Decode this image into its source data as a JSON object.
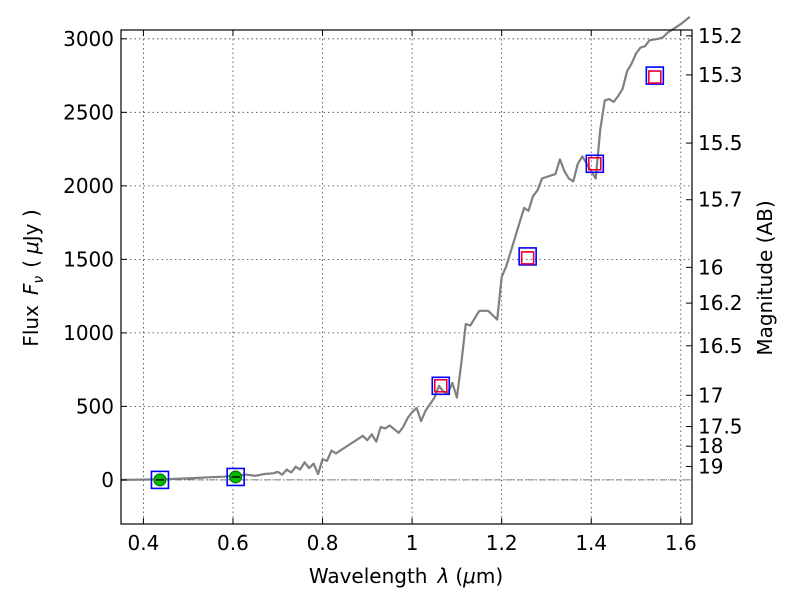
{
  "chart_data": {
    "type": "line",
    "xlabel": "Wavelength",
    "xlabel_symbol": "λ",
    "xlabel_unit_open": "(",
    "xlabel_unit_mu": "μ",
    "xlabel_unit_rest": "m)",
    "ylabel": "Flux",
    "ylabel_symbol": "F",
    "ylabel_subscript": "ν",
    "ylabel_unit_open": "(",
    "ylabel_unit_mu": "μ",
    "ylabel_unit_rest": "Jy )",
    "y2label": "Magnitude (AB)",
    "xlim": [
      0.35,
      1.625
    ],
    "ylim": [
      -300,
      3060
    ],
    "grid": true,
    "x_ticks": [
      {
        "value": 0.4,
        "label": "0.4"
      },
      {
        "value": 0.6,
        "label": "0.6"
      },
      {
        "value": 0.8,
        "label": "0.8"
      },
      {
        "value": 1.0,
        "label": "1"
      },
      {
        "value": 1.2,
        "label": "1.2"
      },
      {
        "value": 1.4,
        "label": "1.4"
      },
      {
        "value": 1.6,
        "label": "1.6"
      }
    ],
    "y_ticks": [
      {
        "value": 0,
        "label": "0"
      },
      {
        "value": 500,
        "label": "500"
      },
      {
        "value": 1000,
        "label": "1000"
      },
      {
        "value": 1500,
        "label": "1500"
      },
      {
        "value": 2000,
        "label": "2000"
      },
      {
        "value": 2500,
        "label": "2500"
      },
      {
        "value": 3000,
        "label": "3000"
      }
    ],
    "y2_ticks": [
      {
        "mag": 15.2,
        "label": "15.2"
      },
      {
        "mag": 15.3,
        "label": "15.3"
      },
      {
        "mag": 15.5,
        "label": "15.5"
      },
      {
        "mag": 15.7,
        "label": "15.7"
      },
      {
        "mag": 16,
        "label": "16"
      },
      {
        "mag": 16.2,
        "label": "16.2"
      },
      {
        "mag": 16.5,
        "label": "16.5"
      },
      {
        "mag": 17,
        "label": "17"
      },
      {
        "mag": 17.5,
        "label": "17.5"
      },
      {
        "mag": 18,
        "label": "18"
      },
      {
        "mag": 19,
        "label": "19"
      }
    ],
    "series": [
      {
        "kind": "spectrum-line",
        "color": "#808080",
        "x": [
          0.35,
          0.4,
          0.45,
          0.5,
          0.55,
          0.58,
          0.61,
          0.63,
          0.65,
          0.67,
          0.69,
          0.7,
          0.71,
          0.72,
          0.73,
          0.74,
          0.75,
          0.76,
          0.77,
          0.78,
          0.79,
          0.8,
          0.81,
          0.82,
          0.83,
          0.85,
          0.87,
          0.89,
          0.9,
          0.91,
          0.92,
          0.93,
          0.94,
          0.95,
          0.97,
          0.98,
          0.99,
          1.0,
          1.01,
          1.02,
          1.03,
          1.05,
          1.06,
          1.07,
          1.08,
          1.09,
          1.1,
          1.11,
          1.12,
          1.13,
          1.14,
          1.15,
          1.16,
          1.17,
          1.19,
          1.2,
          1.21,
          1.22,
          1.23,
          1.24,
          1.25,
          1.26,
          1.27,
          1.28,
          1.29,
          1.3,
          1.32,
          1.33,
          1.34,
          1.35,
          1.36,
          1.37,
          1.38,
          1.39,
          1.4,
          1.41,
          1.42,
          1.43,
          1.44,
          1.45,
          1.46,
          1.47,
          1.48,
          1.49,
          1.5,
          1.51,
          1.52,
          1.53,
          1.55,
          1.56,
          1.57,
          1.58,
          1.59,
          1.6,
          1.62
        ],
        "y": [
          0,
          2,
          5,
          10,
          18,
          22,
          30,
          35,
          28,
          40,
          45,
          55,
          35,
          70,
          50,
          90,
          70,
          120,
          80,
          110,
          40,
          140,
          130,
          200,
          180,
          220,
          260,
          300,
          270,
          310,
          260,
          360,
          350,
          370,
          320,
          360,
          420,
          460,
          490,
          400,
          470,
          560,
          640,
          600,
          590,
          660,
          560,
          800,
          1060,
          1050,
          1100,
          1150,
          1150,
          1150,
          1090,
          1380,
          1450,
          1550,
          1650,
          1750,
          1850,
          1830,
          1930,
          1970,
          2050,
          2060,
          2080,
          2180,
          2100,
          2050,
          2030,
          2150,
          2200,
          2150,
          2100,
          2050,
          2380,
          2580,
          2590,
          2570,
          2610,
          2660,
          2780,
          2830,
          2900,
          2940,
          2950,
          2990,
          3000,
          3010,
          3040,
          3060,
          3080,
          3100,
          3150
        ]
      },
      {
        "kind": "photometry-blue-squares",
        "color": "#0000ff",
        "x": [
          0.437,
          0.606,
          1.064,
          1.258,
          1.408,
          1.542
        ],
        "y": [
          0,
          20,
          640,
          1520,
          2150,
          2750
        ]
      },
      {
        "kind": "model-red-squares",
        "color": "#e8003a",
        "x": [
          1.064,
          1.258,
          1.408,
          1.542
        ],
        "y": [
          640,
          1510,
          2150,
          2740
        ]
      },
      {
        "kind": "photometry-green-circles",
        "color": "#00bb00",
        "x": [
          0.437,
          0.606
        ],
        "y": [
          0,
          20
        ]
      }
    ]
  }
}
